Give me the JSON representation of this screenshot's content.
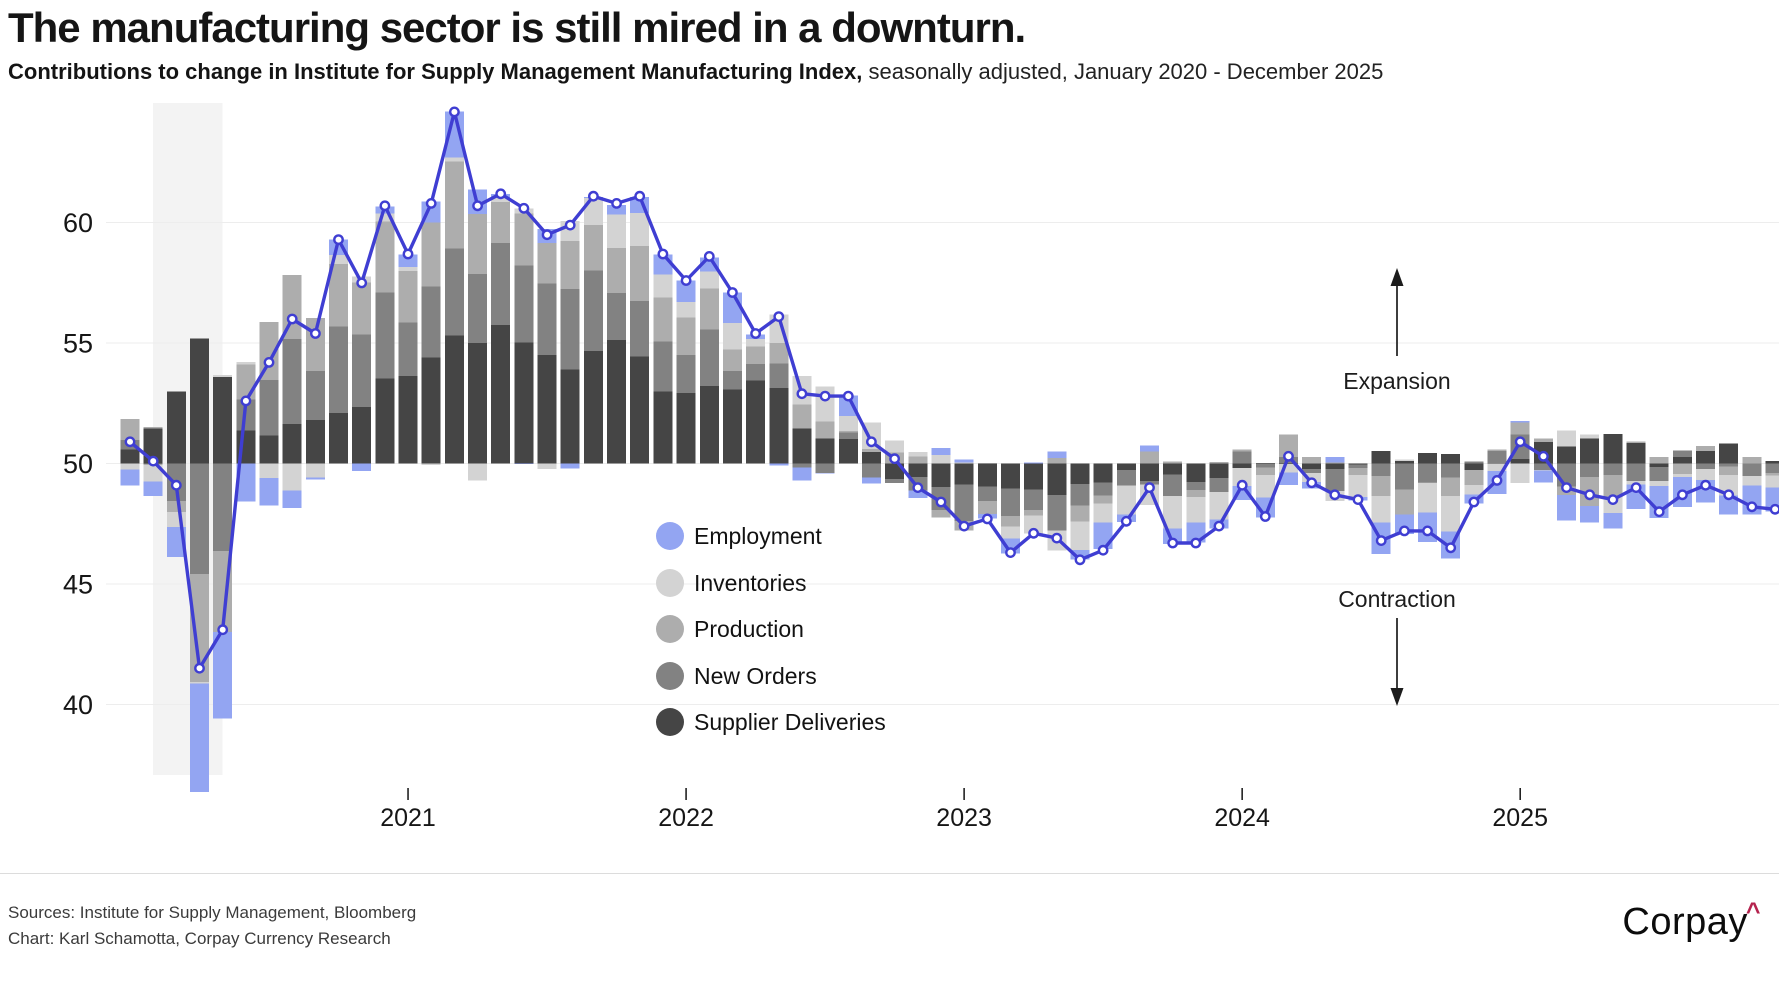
{
  "title": "The manufacturing sector is still mired in a downturn.",
  "subtitle": {
    "main": "Contributions to change in Institute for Supply Management Manufacturing Index,",
    "qualifier": " seasonally adjusted, January 2020 - December 2025"
  },
  "annotations": {
    "expansion": "Expansion",
    "contraction": "Contraction"
  },
  "footer": {
    "sources_line1": "Sources: Institute for Supply Management, Bloomberg",
    "sources_line2": "Chart: Karl Schamotta, Corpay Currency Research",
    "logo_text": "Corpay",
    "logo_caret": "^"
  },
  "colors": {
    "employment": "#93a5f2",
    "inventories": "#d3d3d3",
    "production": "#adadad",
    "new_orders": "#828282",
    "supplier_deliveries": "#454545",
    "line": "#3f3ed2",
    "marker_fill": "#ffffff",
    "recession_band": "#f3f3f3",
    "gridline": "#ededed",
    "axis_text": "#161616",
    "tick_mark": "#222222",
    "annotation_text": "#1c1c1c",
    "logo_caret": "#b5234e"
  },
  "chart_data": {
    "type": "bar",
    "subtype": "stacked-contribution-bars-with-line-overlay",
    "title": "Contributions to change in ISM Manufacturing Index",
    "baseline": 50,
    "ylim": [
      36,
      65
    ],
    "yticks": [
      60,
      55,
      50,
      45,
      40
    ],
    "grid": "horizontal-only",
    "legend_position": "inside-lower-left-of-plot",
    "months": [
      "2020-01",
      "2020-02",
      "2020-03",
      "2020-04",
      "2020-05",
      "2020-06",
      "2020-07",
      "2020-08",
      "2020-09",
      "2020-10",
      "2020-11",
      "2020-12",
      "2021-01",
      "2021-02",
      "2021-03",
      "2021-04",
      "2021-05",
      "2021-06",
      "2021-07",
      "2021-08",
      "2021-09",
      "2021-10",
      "2021-11",
      "2021-12",
      "2022-01",
      "2022-02",
      "2022-03",
      "2022-04",
      "2022-05",
      "2022-06",
      "2022-07",
      "2022-08",
      "2022-09",
      "2022-10",
      "2022-11",
      "2022-12",
      "2023-01",
      "2023-02",
      "2023-03",
      "2023-04",
      "2023-05",
      "2023-06",
      "2023-07",
      "2023-08",
      "2023-09",
      "2023-10",
      "2023-11",
      "2023-12",
      "2024-01",
      "2024-02",
      "2024-03",
      "2024-04",
      "2024-05",
      "2024-06",
      "2024-07",
      "2024-08",
      "2024-09",
      "2024-10",
      "2024-11",
      "2024-12",
      "2025-01",
      "2025-02",
      "2025-03",
      "2025-04",
      "2025-05",
      "2025-06",
      "2025-07",
      "2025-08",
      "2025-09",
      "2025-10",
      "2025-11",
      "2025-12"
    ],
    "xticks": [
      {
        "label": "2021",
        "month_index": 12
      },
      {
        "label": "2022",
        "month_index": 24
      },
      {
        "label": "2023",
        "month_index": 36
      },
      {
        "label": "2024",
        "month_index": 48
      },
      {
        "label": "2025",
        "month_index": 60
      }
    ],
    "recession_band": {
      "start_month": "2020-02",
      "end_month": "2020-05",
      "start_index": 1,
      "end_index": 4
    },
    "stack_order_note": "series listed from the 50 baseline outward; positive values stack above 50, negative below",
    "series": [
      {
        "key": "supplier_deliveries",
        "name": "Supplier Deliveries",
        "values": [
          0.58,
          1.46,
          3,
          5.2,
          3.6,
          1.38,
          1.16,
          1.64,
          1.8,
          2.1,
          2.34,
          3.52,
          3.64,
          4.4,
          5.32,
          5,
          5.76,
          5.02,
          4.5,
          3.9,
          4.68,
          5.12,
          4.44,
          2.98,
          2.92,
          3.22,
          3.08,
          3.44,
          3.14,
          1.46,
          1.04,
          1.02,
          0.48,
          -0.64,
          -0.56,
          -0.98,
          -0.88,
          -0.96,
          -1.04,
          -1.08,
          -1.3,
          -0.86,
          -0.78,
          -0.28,
          -0.72,
          -0.46,
          -0.76,
          -0.6,
          -0.18,
          0.02,
          -0.02,
          -0.22,
          -0.22,
          -0.04,
          0.52,
          0.1,
          0.44,
          0.4,
          -0.26,
          0.02,
          0.18,
          0.9,
          0.7,
          1.04,
          1.22,
          0.86,
          -0.14,
          0.26,
          0.52,
          0.84,
          0,
          0.1
        ]
      },
      {
        "key": "new_orders",
        "name": "New Orders",
        "values": [
          0.4,
          -0.04,
          -1.56,
          -4.58,
          -3.64,
          1.28,
          2.3,
          3.52,
          2.04,
          3.58,
          3.02,
          3.58,
          2.22,
          2.96,
          3.6,
          2.86,
          3.4,
          3.2,
          2.98,
          3.34,
          3.34,
          1.96,
          2.3,
          2.08,
          1.58,
          2.34,
          0.76,
          0.7,
          1.02,
          -0.16,
          -0.4,
          0.26,
          -0.58,
          -0.16,
          -0.56,
          -0.96,
          -1.5,
          -0.6,
          -1.14,
          -0.86,
          -1.48,
          -0.88,
          -0.54,
          -0.64,
          -0.16,
          -0.9,
          -0.34,
          -0.58,
          0.5,
          -0.16,
          0.28,
          -0.18,
          -0.92,
          -0.14,
          -0.52,
          -1.08,
          -0.78,
          -0.58,
          0.08,
          0.5,
          1.02,
          -0.28,
          -0.96,
          -0.56,
          -0.48,
          -0.72,
          -0.58,
          0.28,
          -0.22,
          -0.12,
          -0.52,
          -0.4
        ]
      },
      {
        "key": "production",
        "name": "Production",
        "values": [
          0.86,
          0.06,
          -0.46,
          -4.5,
          -3.36,
          1.46,
          2.42,
          2.66,
          2.2,
          2.6,
          2.16,
          2.96,
          2.14,
          2.64,
          3.62,
          2.5,
          1.7,
          2.16,
          1.68,
          2,
          1.88,
          1.86,
          2.3,
          1.84,
          1.56,
          1.7,
          0.9,
          0.72,
          0.84,
          0.98,
          0.7,
          0.08,
          0.12,
          0.46,
          0.3,
          -0.3,
          -0.4,
          -0.54,
          -0.44,
          -0.22,
          0.22,
          -0.66,
          -0.34,
          0,
          0.5,
          0.08,
          -0.3,
          0.06,
          0.08,
          -0.32,
          0.92,
          0.26,
          0.04,
          -0.3,
          -0.82,
          -1.04,
          -0.04,
          -0.76,
          -0.64,
          0.06,
          0.5,
          0.14,
          -0.34,
          -1.2,
          -0.92,
          0.06,
          0.28,
          -0.44,
          0.2,
          -0.36,
          0.28,
          -0.1
        ]
      },
      {
        "key": "inventories",
        "name": "Inventories",
        "values": [
          -0.24,
          -0.7,
          -0.62,
          -0.06,
          0.08,
          0.1,
          -0.6,
          -1.12,
          -0.58,
          0.38,
          0.24,
          0.32,
          0.16,
          -0.06,
          0.16,
          -0.7,
          0.16,
          0.22,
          -0.22,
          0.84,
          1.12,
          1.4,
          1.36,
          0.94,
          0.64,
          0.72,
          1.1,
          0.32,
          1.18,
          1.2,
          1.46,
          0.62,
          1.1,
          0.5,
          0.18,
          0.36,
          0.04,
          0.02,
          -0.5,
          -0.74,
          -0.84,
          -1.2,
          -0.78,
          -1.2,
          -0.84,
          -1.34,
          -1.04,
          -1.14,
          -0.76,
          -0.94,
          -0.36,
          -0.36,
          -0.42,
          -0.92,
          -1.1,
          0.06,
          -1.22,
          -1.48,
          -0.38,
          -0.32,
          -0.82,
          -0.02,
          0.68,
          0.16,
          -0.66,
          -0.16,
          -0.22,
          -0.12,
          -0.46,
          -0.84,
          -0.4,
          -0.5
        ]
      },
      {
        "key": "employment",
        "name": "Employment",
        "values": [
          -0.68,
          -0.62,
          -1.24,
          -4.5,
          -3.58,
          -1.58,
          -1.14,
          -0.72,
          -0.08,
          0.64,
          -0.32,
          0.3,
          0.52,
          0.88,
          1.92,
          1.02,
          0.18,
          -0.02,
          0.58,
          -0.2,
          0.04,
          0.4,
          0.66,
          0.84,
          0.9,
          0.58,
          1.26,
          0.18,
          -0.08,
          -0.54,
          -0.02,
          0.84,
          -0.26,
          0,
          -0.32,
          0.28,
          0.12,
          -0.18,
          -0.62,
          0.04,
          0.28,
          -0.38,
          -1.12,
          -0.3,
          0.24,
          -0.64,
          -0.84,
          -0.38,
          -0.58,
          -0.82,
          -0.52,
          -0.28,
          0.22,
          -0.14,
          -1.32,
          -0.8,
          -1.22,
          -1.12,
          -0.38,
          -0.94,
          0.06,
          -0.48,
          -1.06,
          -0.7,
          -0.64,
          -1,
          -1.32,
          -1.24,
          -0.94,
          -0.8,
          -1.2,
          -1
        ]
      }
    ],
    "line": {
      "name": "ISM Manufacturing Index",
      "values": [
        50.9,
        50.1,
        49.1,
        41.5,
        43.1,
        52.6,
        54.2,
        56,
        55.4,
        59.3,
        57.5,
        60.7,
        58.7,
        60.8,
        64.6,
        60.7,
        61.2,
        60.6,
        59.5,
        59.9,
        61.1,
        60.8,
        61.1,
        58.7,
        57.6,
        58.6,
        57.1,
        55.4,
        56.1,
        52.9,
        52.8,
        52.8,
        50.9,
        50.2,
        49,
        48.4,
        47.4,
        47.7,
        46.3,
        47.1,
        46.9,
        46,
        46.4,
        47.6,
        49,
        46.7,
        46.7,
        47.4,
        49.1,
        47.8,
        50.3,
        49.2,
        48.7,
        48.5,
        46.8,
        47.2,
        47.2,
        46.5,
        48.4,
        49.3,
        50.9,
        50.3,
        49,
        48.7,
        48.5,
        49,
        48,
        48.7,
        49.1,
        48.7,
        48.2,
        48.1
      ]
    },
    "legend": [
      {
        "key": "employment",
        "label": "Employment"
      },
      {
        "key": "inventories",
        "label": "Inventories"
      },
      {
        "key": "production",
        "label": "Production"
      },
      {
        "key": "new_orders",
        "label": "New Orders"
      },
      {
        "key": "supplier_deliveries",
        "label": "Supplier Deliveries"
      }
    ]
  }
}
